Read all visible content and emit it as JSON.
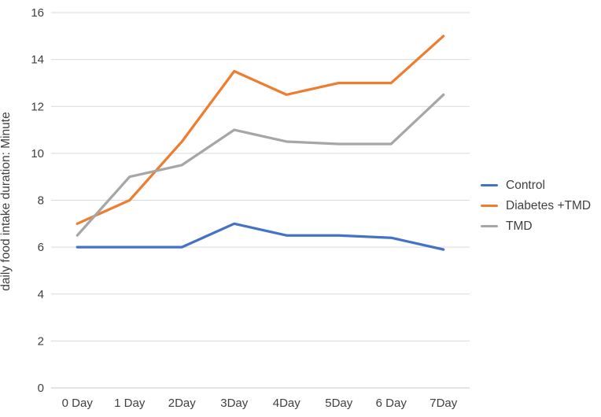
{
  "chart_data": {
    "type": "line",
    "title": "",
    "xlabel": "",
    "ylabel": "daily food intake duration: Minute",
    "categories": [
      "0 Day",
      "1 Day",
      "2Day",
      "3Day",
      "4Day",
      "5Day",
      "6 Day",
      "7Day"
    ],
    "series": [
      {
        "name": "Control",
        "color": "#4472C4",
        "values": [
          6,
          6,
          6,
          7,
          6.5,
          6.5,
          6.4,
          5.9
        ]
      },
      {
        "name": "Diabetes +TMD",
        "color": "#ED7D31",
        "values": [
          7,
          8,
          10.5,
          13.5,
          12.5,
          13,
          13,
          15
        ]
      },
      {
        "name": "TMD",
        "color": "#A6A6A6",
        "values": [
          6.5,
          9,
          9.5,
          11,
          10.5,
          10.4,
          10.4,
          12.5
        ]
      }
    ],
    "ylim": [
      0,
      16
    ],
    "yticks": [
      0,
      2,
      4,
      6,
      8,
      10,
      12,
      14,
      16
    ],
    "grid": true,
    "legend_position": "right"
  },
  "colors": {
    "background": "#FFFFFF",
    "gridline": "#D9D9D9",
    "axis_line": "#C8C8C8",
    "text": "#404040"
  }
}
